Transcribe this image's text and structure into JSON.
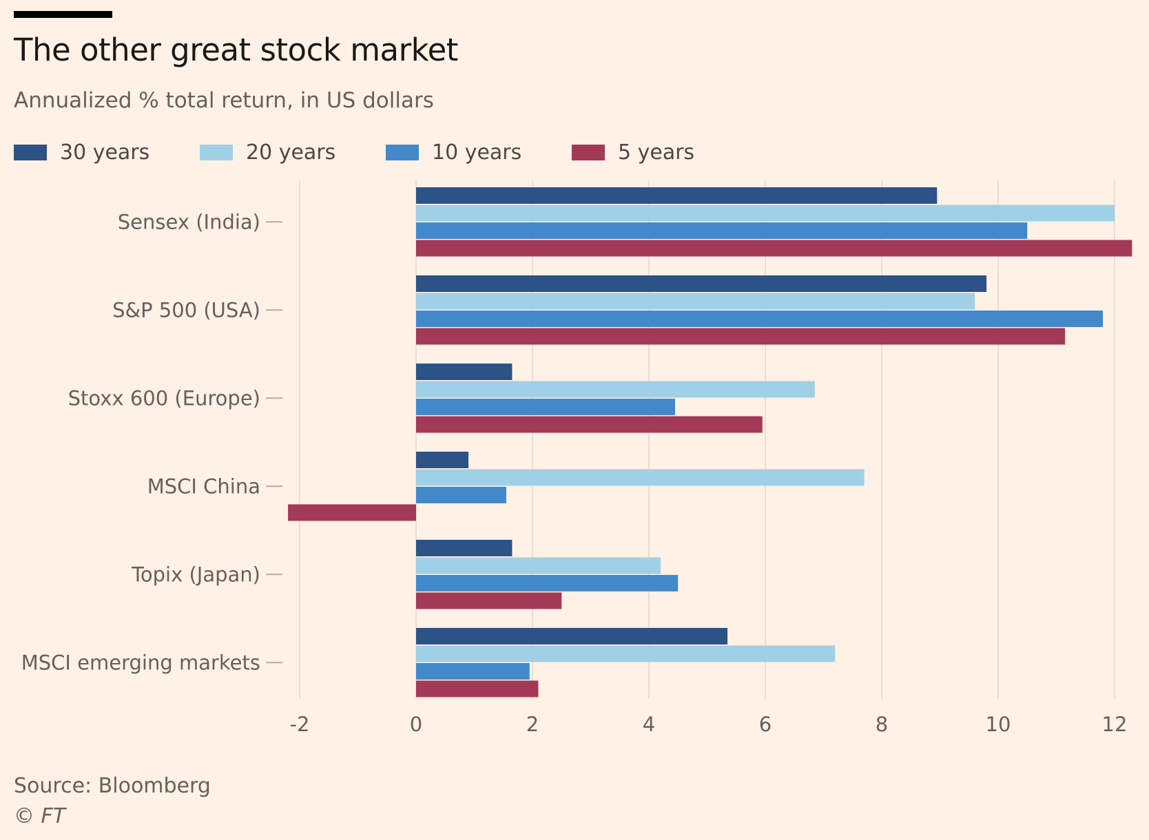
{
  "chart_data": {
    "type": "bar",
    "orientation": "horizontal",
    "title": "The other great stock market",
    "subtitle": "Annualized % total return, in US dollars",
    "categories": [
      "Sensex (India)",
      "S&P 500 (USA)",
      "Stoxx 600 (Europe)",
      "MSCI China",
      "Topix (Japan)",
      "MSCI emerging markets"
    ],
    "series": [
      {
        "name": "30 years",
        "color": "#2c5286",
        "values": [
          8.95,
          9.8,
          1.65,
          0.9,
          1.65,
          5.35
        ]
      },
      {
        "name": "20 years",
        "color": "#a0d0e6",
        "values": [
          12.0,
          9.6,
          6.85,
          7.7,
          4.2,
          7.2
        ]
      },
      {
        "name": "10 years",
        "color": "#4389c9",
        "values": [
          10.5,
          11.8,
          4.45,
          1.55,
          4.5,
          1.95
        ]
      },
      {
        "name": "5 years",
        "color": "#a23a57",
        "values": [
          12.3,
          11.15,
          5.95,
          -2.2,
          2.5,
          2.1
        ]
      }
    ],
    "xlim": [
      -2.2,
      12.3
    ],
    "xticks": [
      -2,
      0,
      2,
      4,
      6,
      8,
      10,
      12
    ],
    "xtick_labels": [
      "-2",
      "0",
      "2",
      "4",
      "6",
      "8",
      "10",
      "12"
    ],
    "grid": true,
    "legend_position": "top-left"
  },
  "footer": {
    "source": "Source: Bloomberg",
    "copyright": "© FT"
  },
  "colors": {
    "background": "#fff1e5",
    "gridline": "#e9ded5",
    "text": "#66605c"
  }
}
